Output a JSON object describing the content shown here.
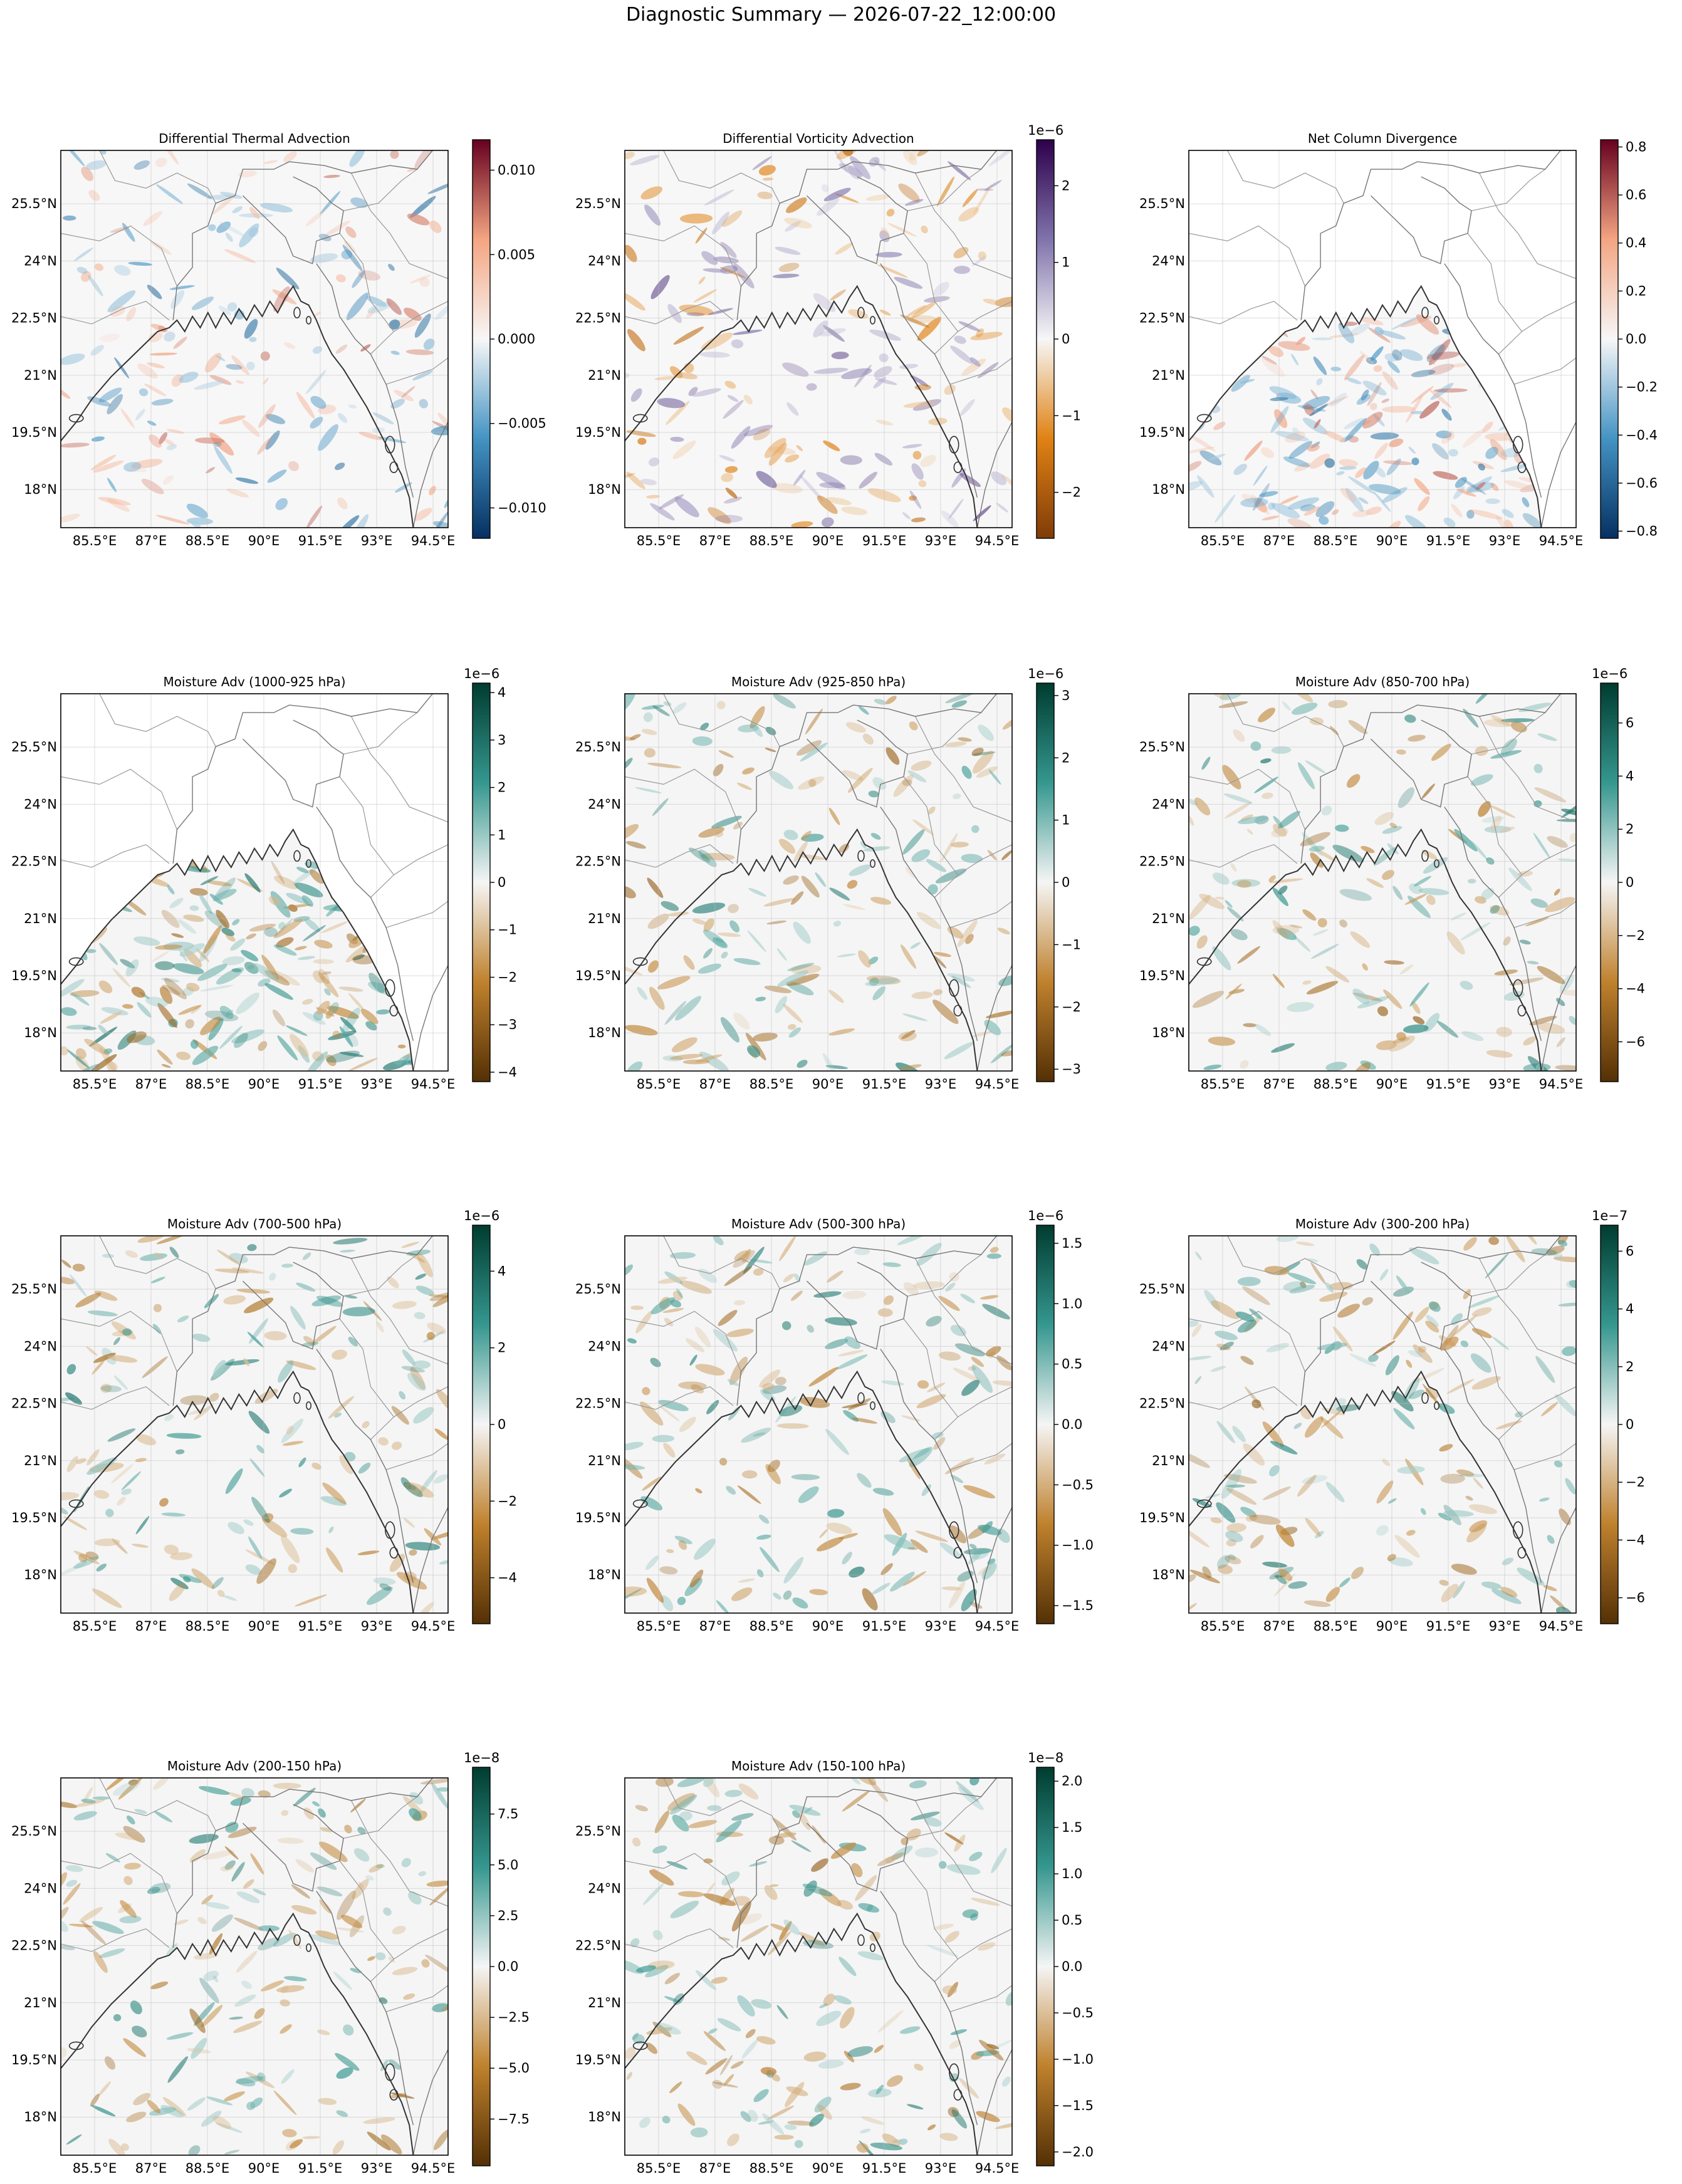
{
  "figure": {
    "suptitle": "Diagnostic Summary — 2026-07-22_12:00:00"
  },
  "chart_data": [
    {
      "type": "heatmap",
      "title": "Differential Thermal Advection",
      "cmap": "RdBu_r",
      "colors": [
        "#053061",
        "#4393c3",
        "#f7f7f7",
        "#f4a582",
        "#67001f"
      ],
      "vmin": -0.0118,
      "vmax": 0.0118,
      "colorbar_ticks": [
        -0.01,
        -0.005,
        0.0,
        0.005,
        0.01
      ],
      "colorbar_tick_labels": [
        "−0.010",
        "−0.005",
        "0.000",
        "0.005",
        "0.010"
      ],
      "offset_text": "",
      "x_ticks": [
        85.5,
        87,
        88.5,
        90,
        91.5,
        93,
        94.5
      ],
      "x_tick_labels": [
        "85.5°E",
        "87°E",
        "88.5°E",
        "90°E",
        "91.5°E",
        "93°E",
        "94.5°E"
      ],
      "y_ticks": [
        18,
        19.5,
        21,
        22.5,
        24,
        25.5
      ],
      "y_tick_labels": [
        "18°N",
        "19.5°N",
        "21°N",
        "22.5°N",
        "24°N",
        "25.5°N"
      ],
      "lon_range": [
        84.6,
        94.9
      ],
      "lat_range": [
        17.0,
        26.9
      ],
      "grid": true,
      "coverage": "full"
    },
    {
      "type": "heatmap",
      "title": "Differential Vorticity Advection",
      "cmap": "PuOr",
      "colors": [
        "#7f3b08",
        "#e08214",
        "#f7f7f7",
        "#8073ac",
        "#2d004b"
      ],
      "vmin": -2.6,
      "vmax": 2.6,
      "colorbar_ticks": [
        -2,
        -1,
        0,
        1,
        2
      ],
      "colorbar_tick_labels": [
        "−2",
        "−1",
        "0",
        "1",
        "2"
      ],
      "offset_text": "1e−6",
      "x_ticks": [
        85.5,
        87,
        88.5,
        90,
        91.5,
        93,
        94.5
      ],
      "x_tick_labels": [
        "85.5°E",
        "87°E",
        "88.5°E",
        "90°E",
        "91.5°E",
        "93°E",
        "94.5°E"
      ],
      "y_ticks": [
        18,
        19.5,
        21,
        22.5,
        24,
        25.5
      ],
      "y_tick_labels": [
        "18°N",
        "19.5°N",
        "21°N",
        "22.5°N",
        "24°N",
        "25.5°N"
      ],
      "lon_range": [
        84.6,
        94.9
      ],
      "lat_range": [
        17.0,
        26.9
      ],
      "grid": true,
      "coverage": "full"
    },
    {
      "type": "heatmap",
      "title": "Net Column Divergence",
      "cmap": "RdBu_r",
      "colors": [
        "#053061",
        "#4393c3",
        "#f7f7f7",
        "#f4a582",
        "#67001f"
      ],
      "vmin": -0.83,
      "vmax": 0.83,
      "colorbar_ticks": [
        -0.8,
        -0.6,
        -0.4,
        -0.2,
        0.0,
        0.2,
        0.4,
        0.6,
        0.8
      ],
      "colorbar_tick_labels": [
        "−0.8",
        "−0.6",
        "−0.4",
        "−0.2",
        "0.0",
        "0.2",
        "0.4",
        "0.6",
        "0.8"
      ],
      "offset_text": "",
      "x_ticks": [
        85.5,
        87,
        88.5,
        90,
        91.5,
        93,
        94.5
      ],
      "x_tick_labels": [
        "85.5°E",
        "87°E",
        "88.5°E",
        "90°E",
        "91.5°E",
        "93°E",
        "94.5°E"
      ],
      "y_ticks": [
        18,
        19.5,
        21,
        22.5,
        24,
        25.5
      ],
      "y_tick_labels": [
        "18°N",
        "19.5°N",
        "21°N",
        "22.5°N",
        "24°N",
        "25.5°N"
      ],
      "lon_range": [
        84.6,
        94.9
      ],
      "lat_range": [
        17.0,
        26.9
      ],
      "grid": true,
      "coverage": "ocean"
    },
    {
      "type": "heatmap",
      "title": "Moisture Adv (1000-925 hPa)",
      "cmap": "BrBG",
      "colors": [
        "#543005",
        "#bf812d",
        "#f5f5f5",
        "#35978f",
        "#003c30"
      ],
      "vmin": -4.2,
      "vmax": 4.2,
      "colorbar_ticks": [
        -4,
        -3,
        -2,
        -1,
        0,
        1,
        2,
        3,
        4
      ],
      "colorbar_tick_labels": [
        "−4",
        "−3",
        "−2",
        "−1",
        "0",
        "1",
        "2",
        "3",
        "4"
      ],
      "offset_text": "1e−6",
      "x_ticks": [
        85.5,
        87,
        88.5,
        90,
        91.5,
        93,
        94.5
      ],
      "x_tick_labels": [
        "85.5°E",
        "87°E",
        "88.5°E",
        "90°E",
        "91.5°E",
        "93°E",
        "94.5°E"
      ],
      "y_ticks": [
        18,
        19.5,
        21,
        22.5,
        24,
        25.5
      ],
      "y_tick_labels": [
        "18°N",
        "19.5°N",
        "21°N",
        "22.5°N",
        "24°N",
        "25.5°N"
      ],
      "lon_range": [
        84.6,
        94.9
      ],
      "lat_range": [
        17.0,
        26.9
      ],
      "grid": true,
      "coverage": "ocean"
    },
    {
      "type": "heatmap",
      "title": "Moisture Adv (925-850 hPa)",
      "cmap": "BrBG",
      "colors": [
        "#543005",
        "#bf812d",
        "#f5f5f5",
        "#35978f",
        "#003c30"
      ],
      "vmin": -3.2,
      "vmax": 3.2,
      "colorbar_ticks": [
        -3,
        -2,
        -1,
        0,
        1,
        2,
        3
      ],
      "colorbar_tick_labels": [
        "−3",
        "−2",
        "−1",
        "0",
        "1",
        "2",
        "3"
      ],
      "offset_text": "1e−6",
      "x_ticks": [
        85.5,
        87,
        88.5,
        90,
        91.5,
        93,
        94.5
      ],
      "x_tick_labels": [
        "85.5°E",
        "87°E",
        "88.5°E",
        "90°E",
        "91.5°E",
        "93°E",
        "94.5°E"
      ],
      "y_ticks": [
        18,
        19.5,
        21,
        22.5,
        24,
        25.5
      ],
      "y_tick_labels": [
        "18°N",
        "19.5°N",
        "21°N",
        "22.5°N",
        "24°N",
        "25.5°N"
      ],
      "lon_range": [
        84.6,
        94.9
      ],
      "lat_range": [
        17.0,
        26.9
      ],
      "grid": true,
      "coverage": "full"
    },
    {
      "type": "heatmap",
      "title": "Moisture Adv (850-700 hPa)",
      "cmap": "BrBG",
      "colors": [
        "#543005",
        "#bf812d",
        "#f5f5f5",
        "#35978f",
        "#003c30"
      ],
      "vmin": -7.5,
      "vmax": 7.5,
      "colorbar_ticks": [
        -6,
        -4,
        -2,
        0,
        2,
        4,
        6
      ],
      "colorbar_tick_labels": [
        "−6",
        "−4",
        "−2",
        "0",
        "2",
        "4",
        "6"
      ],
      "offset_text": "1e−6",
      "x_ticks": [
        85.5,
        87,
        88.5,
        90,
        91.5,
        93,
        94.5
      ],
      "x_tick_labels": [
        "85.5°E",
        "87°E",
        "88.5°E",
        "90°E",
        "91.5°E",
        "93°E",
        "94.5°E"
      ],
      "y_ticks": [
        18,
        19.5,
        21,
        22.5,
        24,
        25.5
      ],
      "y_tick_labels": [
        "18°N",
        "19.5°N",
        "21°N",
        "22.5°N",
        "24°N",
        "25.5°N"
      ],
      "lon_range": [
        84.6,
        94.9
      ],
      "lat_range": [
        17.0,
        26.9
      ],
      "grid": true,
      "coverage": "full"
    },
    {
      "type": "heatmap",
      "title": "Moisture Adv (700-500 hPa)",
      "cmap": "BrBG",
      "colors": [
        "#543005",
        "#bf812d",
        "#f5f5f5",
        "#35978f",
        "#003c30"
      ],
      "vmin": -5.2,
      "vmax": 5.2,
      "colorbar_ticks": [
        -4,
        -2,
        0,
        2,
        4
      ],
      "colorbar_tick_labels": [
        "−4",
        "−2",
        "0",
        "2",
        "4"
      ],
      "offset_text": "1e−6",
      "x_ticks": [
        85.5,
        87,
        88.5,
        90,
        91.5,
        93,
        94.5
      ],
      "x_tick_labels": [
        "85.5°E",
        "87°E",
        "88.5°E",
        "90°E",
        "91.5°E",
        "93°E",
        "94.5°E"
      ],
      "y_ticks": [
        18,
        19.5,
        21,
        22.5,
        24,
        25.5
      ],
      "y_tick_labels": [
        "18°N",
        "19.5°N",
        "21°N",
        "22.5°N",
        "24°N",
        "25.5°N"
      ],
      "lon_range": [
        84.6,
        94.9
      ],
      "lat_range": [
        17.0,
        26.9
      ],
      "grid": true,
      "coverage": "full"
    },
    {
      "type": "heatmap",
      "title": "Moisture Adv (500-300 hPa)",
      "cmap": "BrBG",
      "colors": [
        "#543005",
        "#bf812d",
        "#f5f5f5",
        "#35978f",
        "#003c30"
      ],
      "vmin": -1.65,
      "vmax": 1.65,
      "colorbar_ticks": [
        -1.5,
        -1.0,
        -0.5,
        0.0,
        0.5,
        1.0,
        1.5
      ],
      "colorbar_tick_labels": [
        "−1.5",
        "−1.0",
        "−0.5",
        "0.0",
        "0.5",
        "1.0",
        "1.5"
      ],
      "offset_text": "1e−6",
      "x_ticks": [
        85.5,
        87,
        88.5,
        90,
        91.5,
        93,
        94.5
      ],
      "x_tick_labels": [
        "85.5°E",
        "87°E",
        "88.5°E",
        "90°E",
        "91.5°E",
        "93°E",
        "94.5°E"
      ],
      "y_ticks": [
        18,
        19.5,
        21,
        22.5,
        24,
        25.5
      ],
      "y_tick_labels": [
        "18°N",
        "19.5°N",
        "21°N",
        "22.5°N",
        "24°N",
        "25.5°N"
      ],
      "lon_range": [
        84.6,
        94.9
      ],
      "lat_range": [
        17.0,
        26.9
      ],
      "grid": true,
      "coverage": "full"
    },
    {
      "type": "heatmap",
      "title": "Moisture Adv (300-200 hPa)",
      "cmap": "BrBG",
      "colors": [
        "#543005",
        "#bf812d",
        "#f5f5f5",
        "#35978f",
        "#003c30"
      ],
      "vmin": -6.9,
      "vmax": 6.9,
      "colorbar_ticks": [
        -6,
        -4,
        -2,
        0,
        2,
        4,
        6
      ],
      "colorbar_tick_labels": [
        "−6",
        "−4",
        "−2",
        "0",
        "2",
        "4",
        "6"
      ],
      "offset_text": "1e−7",
      "x_ticks": [
        85.5,
        87,
        88.5,
        90,
        91.5,
        93,
        94.5
      ],
      "x_tick_labels": [
        "85.5°E",
        "87°E",
        "88.5°E",
        "90°E",
        "91.5°E",
        "93°E",
        "94.5°E"
      ],
      "y_ticks": [
        18,
        19.5,
        21,
        22.5,
        24,
        25.5
      ],
      "y_tick_labels": [
        "18°N",
        "19.5°N",
        "21°N",
        "22.5°N",
        "24°N",
        "25.5°N"
      ],
      "lon_range": [
        84.6,
        94.9
      ],
      "lat_range": [
        17.0,
        26.9
      ],
      "grid": true,
      "coverage": "full"
    },
    {
      "type": "heatmap",
      "title": "Moisture Adv (200-150 hPa)",
      "cmap": "BrBG",
      "colors": [
        "#543005",
        "#bf812d",
        "#f5f5f5",
        "#35978f",
        "#003c30"
      ],
      "vmin": -9.8,
      "vmax": 9.8,
      "colorbar_ticks": [
        -7.5,
        -5.0,
        -2.5,
        0.0,
        2.5,
        5.0,
        7.5
      ],
      "colorbar_tick_labels": [
        "−7.5",
        "−5.0",
        "−2.5",
        "0.0",
        "2.5",
        "5.0",
        "7.5"
      ],
      "offset_text": "1e−8",
      "x_ticks": [
        85.5,
        87,
        88.5,
        90,
        91.5,
        93,
        94.5
      ],
      "x_tick_labels": [
        "85.5°E",
        "87°E",
        "88.5°E",
        "90°E",
        "91.5°E",
        "93°E",
        "94.5°E"
      ],
      "y_ticks": [
        18,
        19.5,
        21,
        22.5,
        24,
        25.5
      ],
      "y_tick_labels": [
        "18°N",
        "19.5°N",
        "21°N",
        "22.5°N",
        "24°N",
        "25.5°N"
      ],
      "lon_range": [
        84.6,
        94.9
      ],
      "lat_range": [
        17.0,
        26.9
      ],
      "grid": true,
      "coverage": "full"
    },
    {
      "type": "heatmap",
      "title": "Moisture Adv (150-100 hPa)",
      "cmap": "BrBG",
      "colors": [
        "#543005",
        "#bf812d",
        "#f5f5f5",
        "#35978f",
        "#003c30"
      ],
      "vmin": -2.15,
      "vmax": 2.15,
      "colorbar_ticks": [
        -2.0,
        -1.5,
        -1.0,
        -0.5,
        0.0,
        0.5,
        1.0,
        1.5,
        2.0
      ],
      "colorbar_tick_labels": [
        "−2.0",
        "−1.5",
        "−1.0",
        "−0.5",
        "0.0",
        "0.5",
        "1.0",
        "1.5",
        "2.0"
      ],
      "offset_text": "1e−8",
      "x_ticks": [
        85.5,
        87,
        88.5,
        90,
        91.5,
        93,
        94.5
      ],
      "x_tick_labels": [
        "85.5°E",
        "87°E",
        "88.5°E",
        "90°E",
        "91.5°E",
        "93°E",
        "94.5°E"
      ],
      "y_ticks": [
        18,
        19.5,
        21,
        22.5,
        24,
        25.5
      ],
      "y_tick_labels": [
        "18°N",
        "19.5°N",
        "21°N",
        "22.5°N",
        "24°N",
        "25.5°N"
      ],
      "lon_range": [
        84.6,
        94.9
      ],
      "lat_range": [
        17.0,
        26.9
      ],
      "grid": true,
      "coverage": "full"
    }
  ]
}
